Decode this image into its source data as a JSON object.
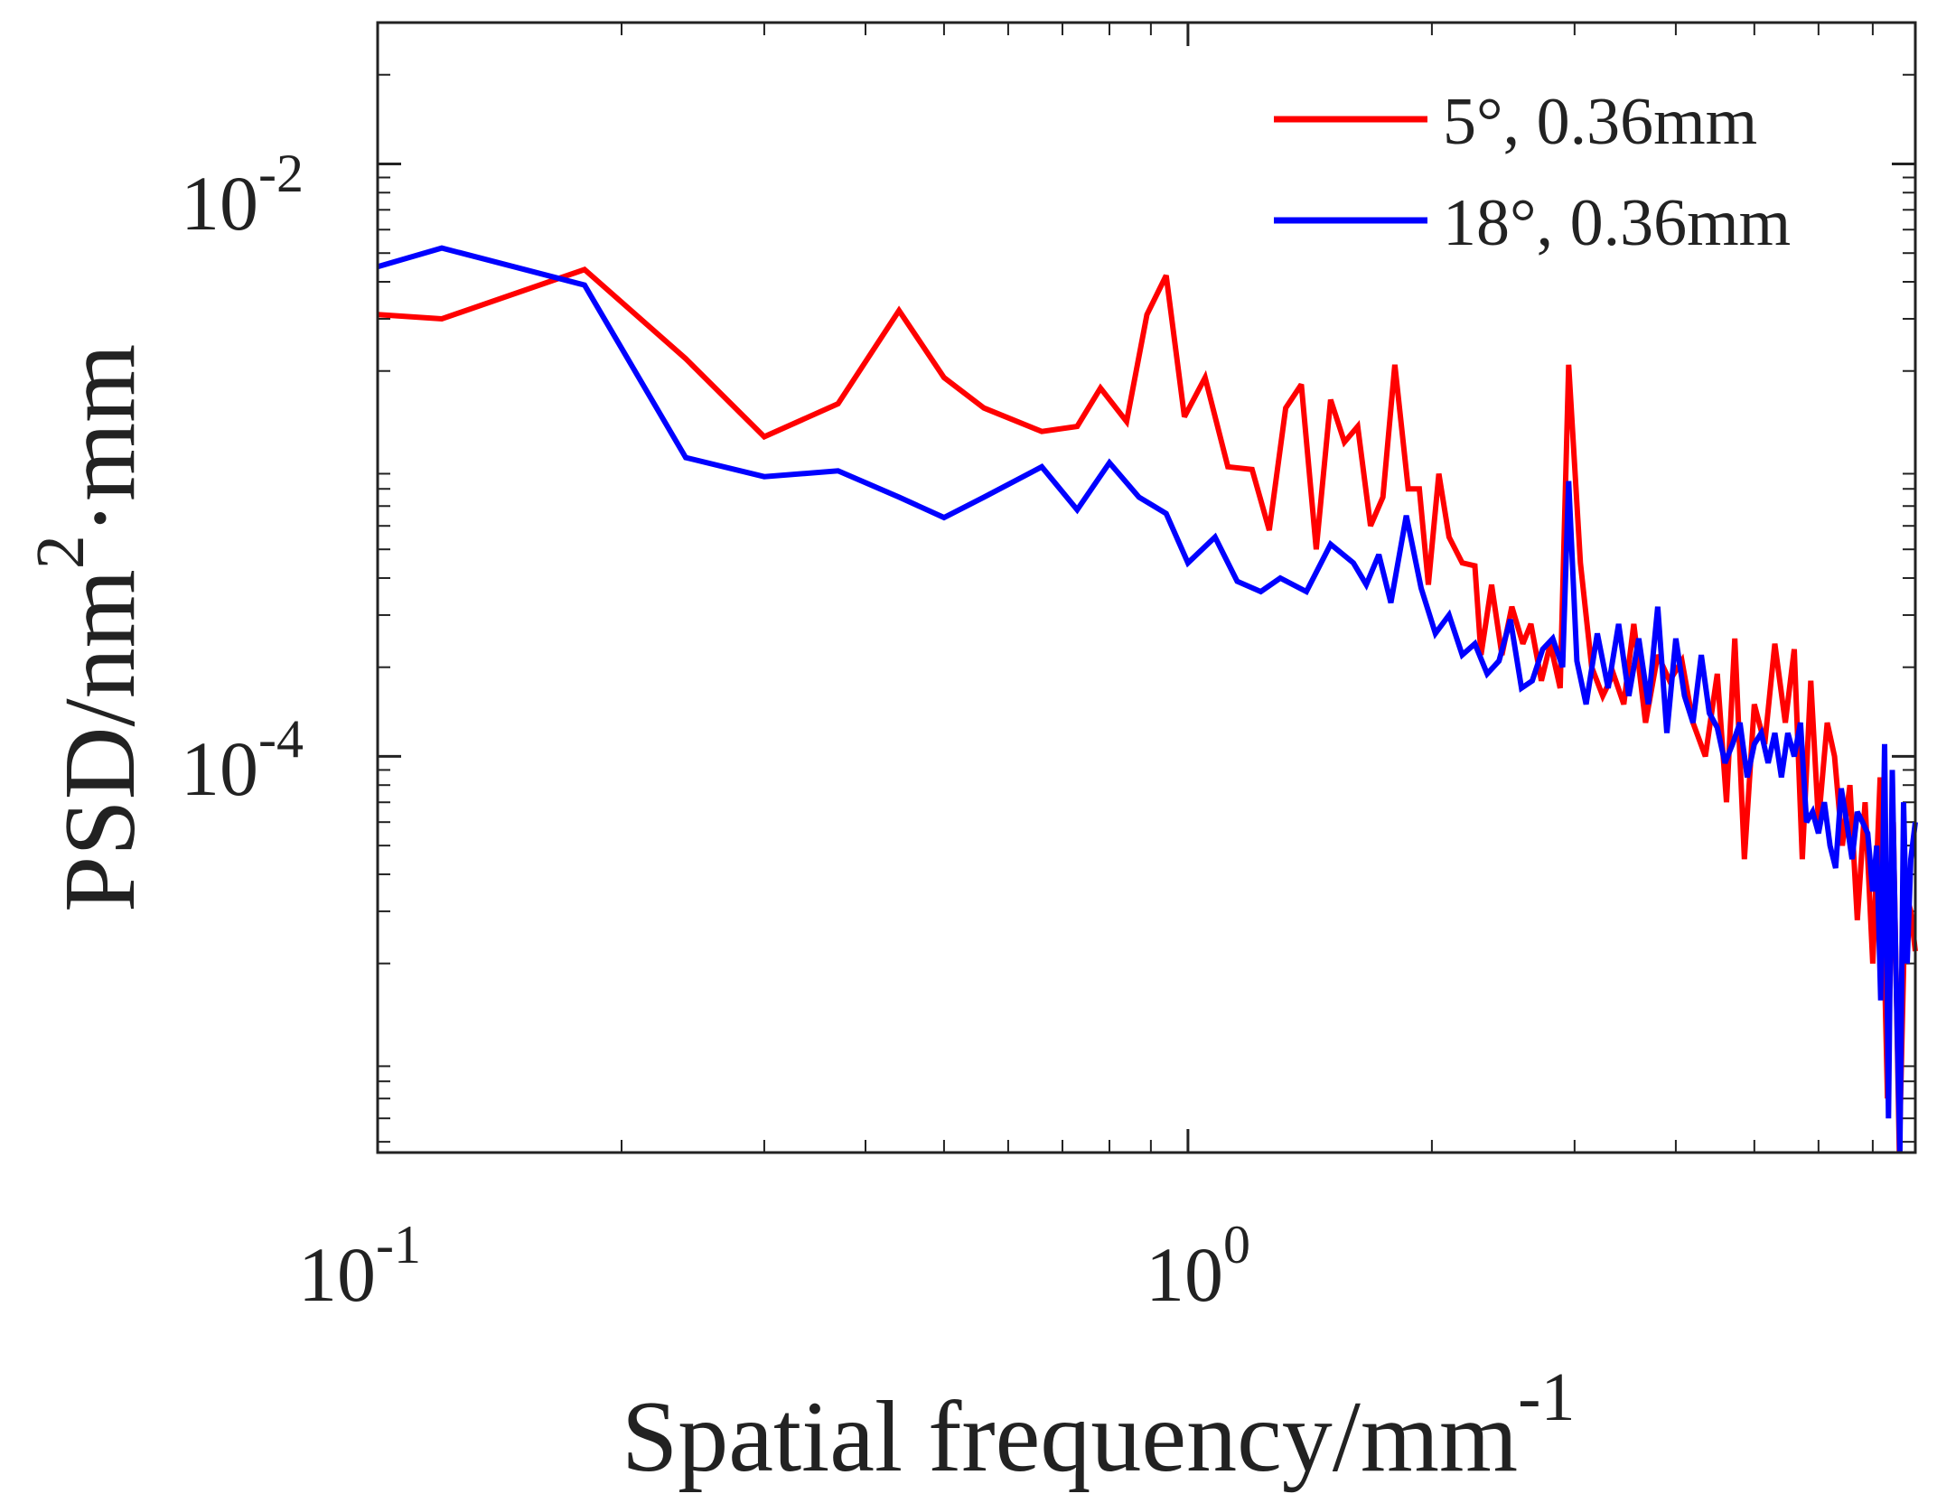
{
  "chart_data": {
    "type": "line",
    "scale": {
      "x": "log",
      "y": "log"
    },
    "xlim": [
      0.1,
      7.9
    ],
    "ylim": [
      4.6e-06,
      0.03
    ],
    "grid": false,
    "legend_position": "top-right",
    "xlabel": {
      "base": "Spatial frequency/mm",
      "sup": "-1"
    },
    "ylabel": {
      "pre": "PSD/nm",
      "sup": "2",
      "post": "·mm"
    },
    "x_ticks": [
      {
        "value": 0.1,
        "base": "10",
        "exp": "-1"
      },
      {
        "value": 1,
        "base": "10",
        "exp": "0"
      }
    ],
    "y_ticks": [
      {
        "value": 0.01,
        "base": "10",
        "exp": "-2"
      },
      {
        "value": 0.0001,
        "base": "10",
        "exp": "-4"
      }
    ],
    "series": [
      {
        "name": "5°, 0.36mm",
        "color": "#ff0000",
        "points": [
          [
            0.1,
            0.0031
          ],
          [
            0.12,
            0.003
          ],
          [
            0.18,
            0.0044
          ],
          [
            0.24,
            0.0022
          ],
          [
            0.3,
            0.0012
          ],
          [
            0.37,
            0.00155
          ],
          [
            0.44,
            0.0032
          ],
          [
            0.5,
            0.0019
          ],
          [
            0.56,
            0.0015
          ],
          [
            0.66,
            0.00125
          ],
          [
            0.73,
            0.0013
          ],
          [
            0.78,
            0.00175
          ],
          [
            0.84,
            0.00135
          ],
          [
            0.89,
            0.0031
          ],
          [
            0.94,
            0.0042
          ],
          [
            0.99,
            0.0014
          ],
          [
            1.05,
            0.0019
          ],
          [
            1.12,
            0.00095
          ],
          [
            1.2,
            0.00093
          ],
          [
            1.26,
            0.00058
          ],
          [
            1.32,
            0.0015
          ],
          [
            1.38,
            0.0018
          ],
          [
            1.44,
            0.0005
          ],
          [
            1.5,
            0.0016
          ],
          [
            1.56,
            0.00115
          ],
          [
            1.62,
            0.0013
          ],
          [
            1.68,
            0.0006
          ],
          [
            1.74,
            0.00075
          ],
          [
            1.8,
            0.0021
          ],
          [
            1.87,
            0.0008
          ],
          [
            1.93,
            0.0008
          ],
          [
            1.98,
            0.00038
          ],
          [
            2.04,
            0.0009
          ],
          [
            2.1,
            0.00055
          ],
          [
            2.18,
            0.00045
          ],
          [
            2.26,
            0.00044
          ],
          [
            2.3,
            0.00022
          ],
          [
            2.37,
            0.00038
          ],
          [
            2.44,
            0.00022
          ],
          [
            2.51,
            0.00032
          ],
          [
            2.59,
            0.00024
          ],
          [
            2.65,
            0.00028
          ],
          [
            2.73,
            0.00018
          ],
          [
            2.8,
            0.00024
          ],
          [
            2.88,
            0.00017
          ],
          [
            2.95,
            0.0021
          ],
          [
            3.05,
            0.00045
          ],
          [
            3.15,
            0.0002
          ],
          [
            3.25,
            0.00016
          ],
          [
            3.35,
            0.00019
          ],
          [
            3.45,
            0.00015
          ],
          [
            3.55,
            0.00028
          ],
          [
            3.67,
            0.00013
          ],
          [
            3.8,
            0.00022
          ],
          [
            3.93,
            0.00018
          ],
          [
            4.07,
            0.00021
          ],
          [
            4.2,
            0.00013
          ],
          [
            4.35,
            0.0001
          ],
          [
            4.5,
            0.00019
          ],
          [
            4.62,
            7e-05
          ],
          [
            4.73,
            0.00025
          ],
          [
            4.86,
            4.5e-05
          ],
          [
            5.0,
            0.00015
          ],
          [
            5.15,
            0.00011
          ],
          [
            5.3,
            0.00024
          ],
          [
            5.46,
            0.00013
          ],
          [
            5.6,
            0.00023
          ],
          [
            5.73,
            4.5e-05
          ],
          [
            5.87,
            0.00018
          ],
          [
            6.0,
            6e-05
          ],
          [
            6.15,
            0.00013
          ],
          [
            6.28,
            0.0001
          ],
          [
            6.42,
            5e-05
          ],
          [
            6.56,
            8e-05
          ],
          [
            6.7,
            2.8e-05
          ],
          [
            6.85,
            7e-05
          ],
          [
            7.0,
            2e-05
          ],
          [
            7.15,
            8.5e-05
          ],
          [
            7.3,
            7e-06
          ],
          [
            7.42,
            6e-05
          ],
          [
            7.55,
            4e-06
          ],
          [
            7.68,
            3.5e-05
          ],
          [
            7.8,
            3e-05
          ],
          [
            7.9,
            2.2e-05
          ]
        ]
      },
      {
        "name": "18°, 0.36mm",
        "color": "#0000ff",
        "points": [
          [
            0.1,
            0.0045
          ],
          [
            0.12,
            0.0052
          ],
          [
            0.18,
            0.0039
          ],
          [
            0.24,
            0.00102
          ],
          [
            0.3,
            0.00088
          ],
          [
            0.37,
            0.00092
          ],
          [
            0.44,
            0.00075
          ],
          [
            0.5,
            0.00064
          ],
          [
            0.56,
            0.00075
          ],
          [
            0.66,
            0.00095
          ],
          [
            0.73,
            0.00068
          ],
          [
            0.8,
            0.00098
          ],
          [
            0.87,
            0.00075
          ],
          [
            0.94,
            0.00066
          ],
          [
            1.0,
            0.00045
          ],
          [
            1.08,
            0.00055
          ],
          [
            1.15,
            0.00039
          ],
          [
            1.23,
            0.00036
          ],
          [
            1.3,
            0.0004
          ],
          [
            1.4,
            0.00036
          ],
          [
            1.5,
            0.00052
          ],
          [
            1.6,
            0.00045
          ],
          [
            1.66,
            0.00038
          ],
          [
            1.72,
            0.00048
          ],
          [
            1.78,
            0.00033
          ],
          [
            1.86,
            0.00065
          ],
          [
            1.94,
            0.00037
          ],
          [
            2.02,
            0.00026
          ],
          [
            2.1,
            0.0003
          ],
          [
            2.18,
            0.00022
          ],
          [
            2.26,
            0.00024
          ],
          [
            2.34,
            0.00019
          ],
          [
            2.42,
            0.00021
          ],
          [
            2.5,
            0.00029
          ],
          [
            2.58,
            0.00017
          ],
          [
            2.66,
            0.00018
          ],
          [
            2.74,
            0.00023
          ],
          [
            2.82,
            0.00025
          ],
          [
            2.9,
            0.0002
          ],
          [
            2.95,
            0.00085
          ],
          [
            3.02,
            0.00021
          ],
          [
            3.1,
            0.00015
          ],
          [
            3.2,
            0.00026
          ],
          [
            3.3,
            0.00017
          ],
          [
            3.4,
            0.00028
          ],
          [
            3.5,
            0.00016
          ],
          [
            3.6,
            0.00025
          ],
          [
            3.7,
            0.00015
          ],
          [
            3.8,
            0.00032
          ],
          [
            3.9,
            0.00012
          ],
          [
            4.0,
            0.00025
          ],
          [
            4.1,
            0.00016
          ],
          [
            4.2,
            0.00013
          ],
          [
            4.3,
            0.00022
          ],
          [
            4.4,
            0.00014
          ],
          [
            4.5,
            0.000125
          ],
          [
            4.6,
            9.5e-05
          ],
          [
            4.7,
            0.00011
          ],
          [
            4.8,
            0.00013
          ],
          [
            4.9,
            8.5e-05
          ],
          [
            5.0,
            0.00011
          ],
          [
            5.1,
            0.00012
          ],
          [
            5.2,
            9.5e-05
          ],
          [
            5.3,
            0.00012
          ],
          [
            5.4,
            8.5e-05
          ],
          [
            5.5,
            0.00012
          ],
          [
            5.6,
            0.0001
          ],
          [
            5.7,
            0.00013
          ],
          [
            5.8,
            6e-05
          ],
          [
            5.9,
            6.5e-05
          ],
          [
            6.0,
            5.5e-05
          ],
          [
            6.1,
            7e-05
          ],
          [
            6.2,
            5e-05
          ],
          [
            6.3,
            4.2e-05
          ],
          [
            6.4,
            7.8e-05
          ],
          [
            6.5,
            6e-05
          ],
          [
            6.6,
            4.5e-05
          ],
          [
            6.7,
            6.5e-05
          ],
          [
            6.8,
            6e-05
          ],
          [
            6.9,
            5.5e-05
          ],
          [
            7.0,
            3.5e-05
          ],
          [
            7.08,
            5e-05
          ],
          [
            7.16,
            1.5e-05
          ],
          [
            7.24,
            0.00011
          ],
          [
            7.32,
            6e-06
          ],
          [
            7.4,
            9e-05
          ],
          [
            7.48,
            1.8e-05
          ],
          [
            7.56,
            4e-06
          ],
          [
            7.64,
            7e-05
          ],
          [
            7.72,
            2e-05
          ],
          [
            7.8,
            4.5e-05
          ],
          [
            7.9,
            6e-05
          ]
        ]
      }
    ]
  }
}
